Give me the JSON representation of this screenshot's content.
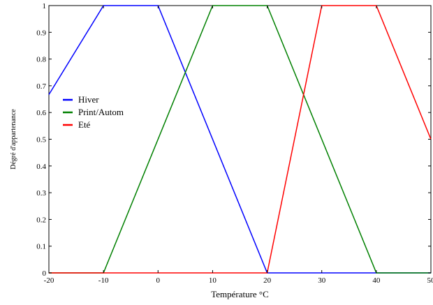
{
  "chart_data": {
    "type": "line",
    "title": "",
    "xlabel": "Température °C",
    "ylabel": "Dégré d'appartenance",
    "xlim": [
      -20,
      50
    ],
    "ylim": [
      0,
      1
    ],
    "x_ticks": [
      -20,
      -10,
      0,
      10,
      20,
      30,
      40,
      50
    ],
    "y_ticks": [
      0,
      0.1,
      0.2,
      0.3,
      0.4,
      0.5,
      0.6,
      0.7,
      0.8,
      0.9,
      1
    ],
    "x_tick_labels": [
      "-20",
      "-10",
      "0",
      "10",
      "20",
      "30",
      "40",
      "50"
    ],
    "y_tick_labels": [
      "0",
      "0.1",
      "0.2",
      "0.3",
      "0.4",
      "0.5",
      "0.6",
      "0.7",
      "0.8",
      "0.9",
      "1"
    ],
    "grid": false,
    "legend_position": "middle-left",
    "series": [
      {
        "name": "Hiver",
        "color": "#0000ff",
        "points": [
          [
            -20,
            0.667
          ],
          [
            -10,
            1
          ],
          [
            0,
            1
          ],
          [
            20,
            0
          ],
          [
            50,
            0
          ]
        ]
      },
      {
        "name": "Print/Autom",
        "color": "#008000",
        "points": [
          [
            -20,
            0
          ],
          [
            -10,
            0
          ],
          [
            10,
            1
          ],
          [
            20,
            1
          ],
          [
            40,
            0
          ],
          [
            50,
            0
          ]
        ]
      },
      {
        "name": "Eté",
        "color": "#ff0000",
        "points": [
          [
            -20,
            0
          ],
          [
            20,
            0
          ],
          [
            30,
            1
          ],
          [
            40,
            1
          ],
          [
            50,
            0.5
          ]
        ]
      }
    ]
  }
}
